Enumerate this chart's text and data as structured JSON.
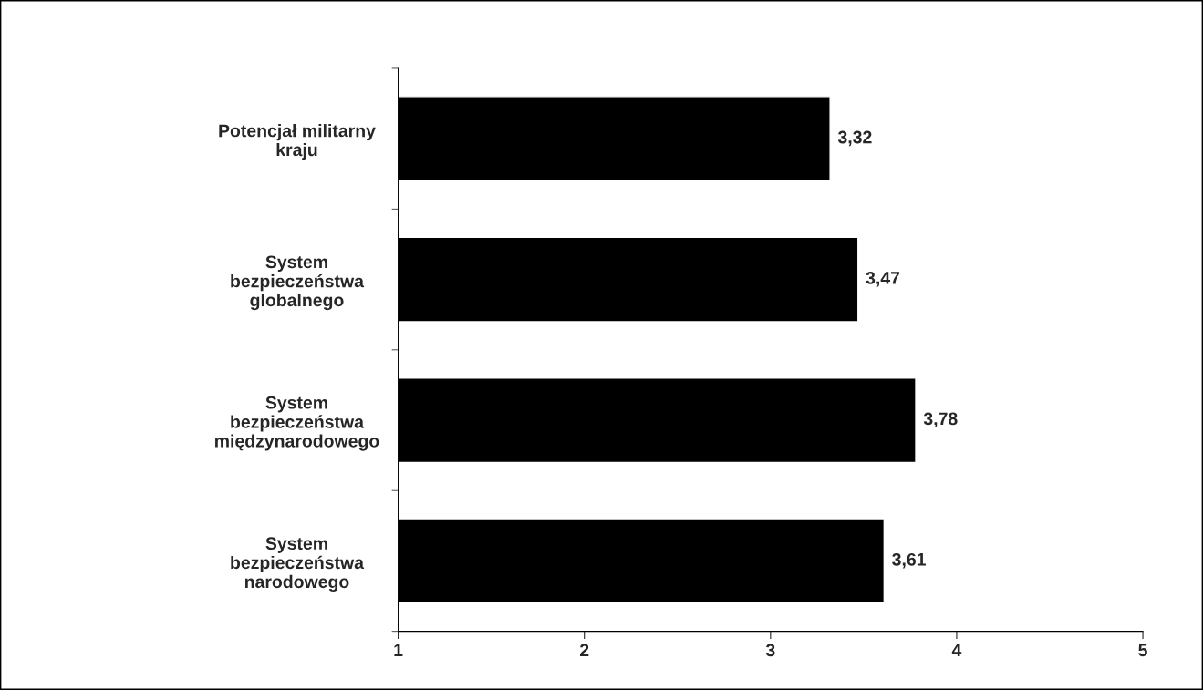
{
  "chart_data": {
    "type": "bar",
    "orientation": "horizontal",
    "categories": [
      "Potencjał militarny\nkraju",
      "System\nbezpieczeństwa\nglobalnego",
      "System\nbezpieczeństwa\nmiędzynarodowego",
      "System\nbezpieczeństwa\nnarodowego"
    ],
    "values": [
      3.32,
      3.47,
      3.78,
      3.61
    ],
    "value_labels": [
      "3,32",
      "3,47",
      "3,78",
      "3,61"
    ],
    "color": "#000000",
    "xlim": [
      1,
      5
    ],
    "xticks": [
      1,
      2,
      3,
      4,
      5
    ],
    "grid": false,
    "legend": false
  }
}
